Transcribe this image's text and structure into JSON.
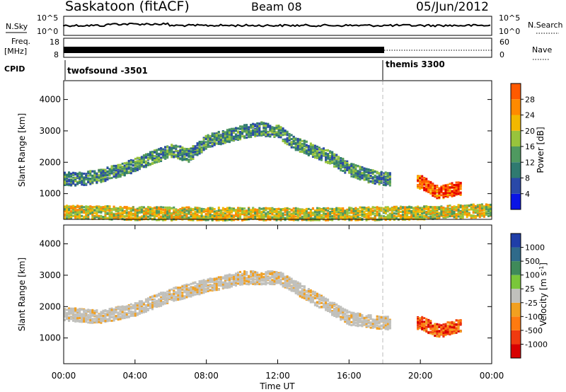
{
  "header": {
    "station": "Saskatoon (fitACF)",
    "beam": "Beam 08",
    "date": "05/Jun/2012"
  },
  "summary_panel": {
    "nsky_label": "N.Sky",
    "nsky_ticks": [
      "10^5",
      "10^0"
    ],
    "nsearch_label": "N.Search",
    "nsearch_ticks": [
      "10^5",
      "10^0"
    ],
    "freq_label_1": "Freq.",
    "freq_label_2": "[MHz]",
    "freq_ticks": [
      "18",
      "8"
    ],
    "nave_label": "Nave",
    "nave_ticks": [
      "60",
      "0"
    ],
    "cpid_label": "CPID",
    "cpid_segments": [
      {
        "name": "twofsound -3501",
        "start_hour": 0,
        "end_hour": 18
      },
      {
        "name": "themis 3300",
        "start_hour": 18,
        "end_hour": 24
      }
    ]
  },
  "colors": {
    "power_scale": [
      "#0a14e6",
      "#2a49a8",
      "#2f7a70",
      "#4f9960",
      "#98c43c",
      "#f2b800",
      "#ff8a00",
      "#ff5a00",
      "#e60000"
    ],
    "velocity_scale": [
      "#1f3ea8",
      "#2f6a8a",
      "#3f8a5a",
      "#7ac63a",
      "#c0c0bc",
      "#f2a020",
      "#ff7a10",
      "#f03a10",
      "#d80000"
    ],
    "axis": "#000000"
  },
  "chart_data": [
    {
      "type": "heatmap",
      "panel": "power",
      "ylabel": "Slant Range [km]",
      "xlim": [
        0,
        24
      ],
      "ylim": [
        180,
        4600
      ],
      "yticks": [
        1000,
        2000,
        3000,
        4000
      ],
      "colorbar_label": "Power [dB]",
      "colorbar_range": [
        0,
        32
      ],
      "colorbar_ticks": [
        "4",
        "8",
        "12",
        "16",
        "20",
        "24",
        "28"
      ],
      "features": [
        {
          "desc": "main echo band",
          "x": [
            0,
            1,
            2,
            3,
            4,
            5,
            6,
            7,
            8,
            9,
            10,
            11,
            12,
            13,
            14,
            15,
            16,
            17,
            18
          ],
          "y": [
            1500,
            1500,
            1600,
            1750,
            1950,
            2200,
            2400,
            2250,
            2700,
            2850,
            3000,
            3100,
            3000,
            2600,
            2400,
            2150,
            1800,
            1600,
            1500
          ],
          "level": 10
        },
        {
          "desc": "near-range band",
          "x": [
            0,
            4,
            8,
            12,
            16,
            20,
            24
          ],
          "y": [
            450,
            400,
            380,
            360,
            380,
            420,
            500
          ],
          "level": 18
        },
        {
          "desc": "strong patch near 21 UT",
          "x": [
            20,
            21,
            22
          ],
          "y": [
            1400,
            1050,
            1200
          ],
          "level": 28
        }
      ]
    },
    {
      "type": "heatmap",
      "panel": "velocity",
      "ylabel": "Slant Range [km]",
      "xlabel": "Time UT",
      "xlim": [
        0,
        24
      ],
      "ylim": [
        180,
        4600
      ],
      "yticks": [
        1000,
        2000,
        3000,
        4000
      ],
      "xticks": [
        "00:00",
        "04:00",
        "08:00",
        "12:00",
        "16:00",
        "20:00",
        "00:00"
      ],
      "colorbar_label": "Velocity [m s^-1]",
      "colorbar_ticks": [
        "1000",
        "500",
        "100",
        "25",
        "-25",
        "-100",
        "-500",
        "-1000"
      ],
      "features": [
        {
          "desc": "ground scatter band (|v|<25)",
          "x": [
            0,
            2,
            4,
            6,
            8,
            10,
            12,
            14,
            16,
            18
          ],
          "y": [
            1800,
            1700,
            1950,
            2400,
            2700,
            2950,
            2950,
            2300,
            1650,
            1500
          ],
          "velocity": 0
        },
        {
          "desc": "receding flow near 21 UT",
          "x": [
            20,
            21,
            22
          ],
          "y": [
            1500,
            1250,
            1400
          ],
          "velocity": -300
        }
      ]
    }
  ]
}
